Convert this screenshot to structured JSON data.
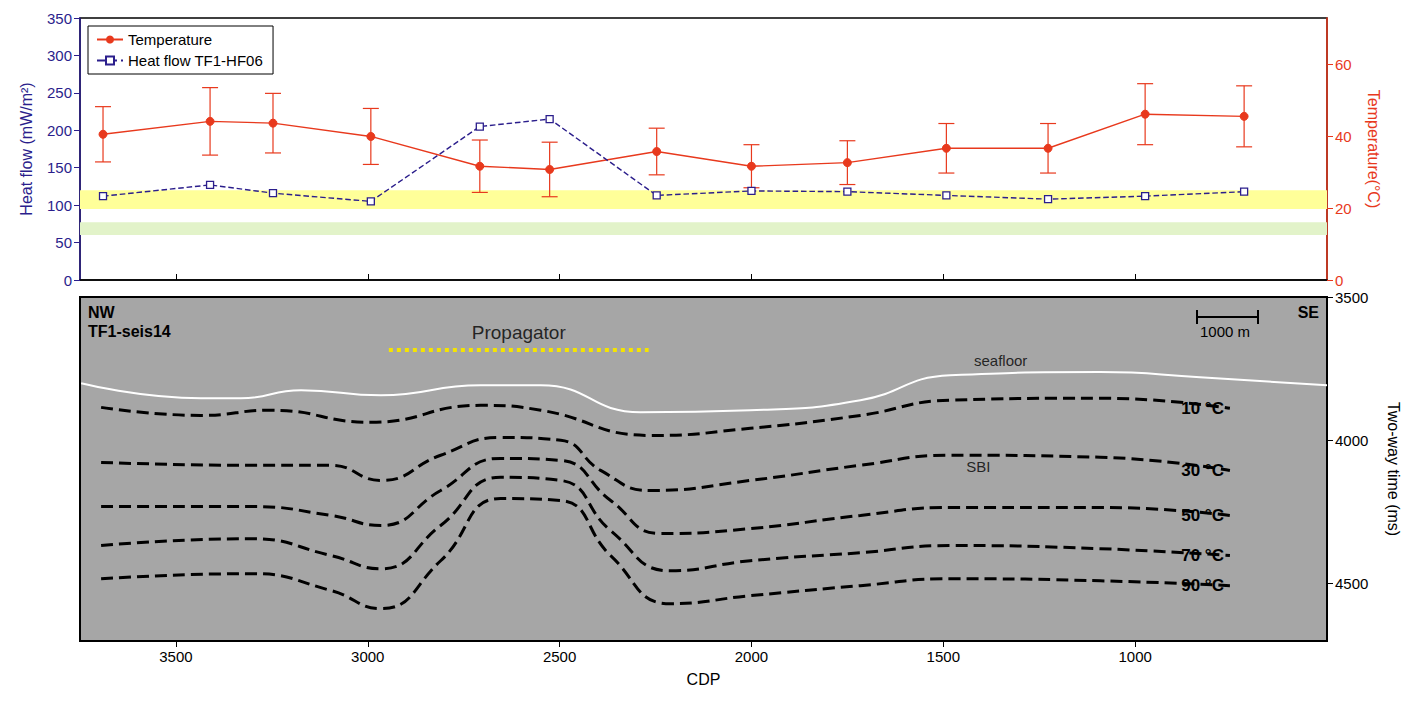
{
  "chart_data": [
    {
      "type": "line",
      "ylabel": "Heat flow (mW/m²)",
      "y2label": "Temperature(°C)",
      "xlim": [
        3750,
        500
      ],
      "xticks": [
        3500,
        3000,
        2500,
        2000,
        1500,
        1000
      ],
      "tick_labels": "y",
      "ylim": [
        0,
        350
      ],
      "yticks": [
        0,
        50,
        100,
        150,
        200,
        250,
        300,
        350
      ],
      "y2lim": [
        0,
        73
      ],
      "y2ticks": [
        0,
        20,
        40,
        60
      ],
      "grid": false,
      "legend": "upper left",
      "x": [
        3690,
        3411,
        3247,
        2992,
        2708,
        2526,
        2247,
        2000,
        1750,
        1492,
        1227,
        974,
        716
      ],
      "series": [
        {
          "name": "Temperature",
          "axis": "y2",
          "color": "#e8391d",
          "marker": "circle",
          "line_style": "solid",
          "values": [
            40.6,
            44.2,
            43.7,
            40.0,
            31.7,
            30.8,
            35.8,
            31.7,
            32.7,
            36.7,
            36.7,
            46.2,
            45.6
          ],
          "errors": [
            7.7,
            9.4,
            8.3,
            7.8,
            7.3,
            7.6,
            6.5,
            6.0,
            6.1,
            6.9,
            6.9,
            8.5,
            8.5
          ]
        },
        {
          "name": "Heat flow TF1-HF06",
          "axis": "y",
          "color": "#2b1e8c",
          "marker": "square",
          "line_style": "dashed",
          "values": [
            112,
            127,
            116,
            105,
            205,
            215,
            113,
            119,
            118,
            113,
            108,
            112,
            118
          ]
        }
      ],
      "bands": [
        {
          "from": 95,
          "to": 120,
          "color": "#ffff99"
        },
        {
          "from": 60,
          "to": 77,
          "color": "#e2f3c9"
        }
      ]
    },
    {
      "type": "line",
      "xlabel": "CDP",
      "ylabel": "Two-way time (ms)",
      "xlim": [
        3750,
        500
      ],
      "xticks": [
        3500,
        3000,
        2500,
        2000,
        1500,
        1000
      ],
      "ylim": [
        4700,
        3500
      ],
      "yticks": [
        3500,
        4000,
        4500
      ],
      "grid": false,
      "direction_labels": {
        "left": "NW",
        "right": "SE"
      },
      "profile": "TF1-seis14",
      "scale_bar": "1000 m",
      "propagator": {
        "label": "Propagator",
        "x": [
          2945,
          2268
        ],
        "y": 3685,
        "color": "#f5e400"
      },
      "annotations": [
        {
          "text": "SBI",
          "x": 1440,
          "y": 4090
        }
      ],
      "series": [
        {
          "name": "seafloor",
          "color": "#ffffff",
          "line_style": "solid",
          "label_at": [
            1420,
            3720
          ],
          "x": [
            3747,
            3435,
            3331,
            3174,
            2966,
            2706,
            2549,
            2289,
            2003,
            1716,
            1482,
            1091,
            831,
            500
          ],
          "values": [
            3801,
            3853,
            3853,
            3825,
            3843,
            3808,
            3808,
            3902,
            3895,
            3860,
            3773,
            3762,
            3780,
            3808
          ]
        },
        {
          "name": "10 °C",
          "color": "#000000",
          "line_style": "dashed",
          "x": [
            3695,
            3435,
            3253,
            2992,
            2706,
            2549,
            2263,
            2003,
            1716,
            1482,
            1091,
            753
          ],
          "values": [
            3885,
            3913,
            3895,
            3937,
            3878,
            3895,
            3983,
            3958,
            3913,
            3860,
            3853,
            3888
          ]
        },
        {
          "name": "30 °C",
          "color": "#000000",
          "line_style": "dashed",
          "x": [
            3695,
            3305,
            3096,
            2966,
            2810,
            2654,
            2497,
            2393,
            2263,
            2003,
            1716,
            1482,
            1091,
            753
          ],
          "values": [
            4077,
            4087,
            4087,
            4140,
            4052,
            3990,
            4000,
            4105,
            4175,
            4140,
            4087,
            4052,
            4059,
            4105
          ]
        },
        {
          "name": "50 °C",
          "color": "#000000",
          "line_style": "dashed",
          "x": [
            3695,
            3305,
            3096,
            2966,
            2810,
            2654,
            2497,
            2367,
            2237,
            2003,
            1716,
            1482,
            1091,
            753
          ],
          "values": [
            4231,
            4231,
            4262,
            4297,
            4175,
            4063,
            4070,
            4210,
            4325,
            4308,
            4262,
            4234,
            4234,
            4262
          ]
        },
        {
          "name": "70 °C",
          "color": "#000000",
          "line_style": "dashed",
          "x": [
            3695,
            3305,
            3096,
            2966,
            2810,
            2654,
            2497,
            2367,
            2211,
            2003,
            1716,
            1482,
            1091,
            753
          ],
          "values": [
            4367,
            4343,
            4402,
            4448,
            4297,
            4129,
            4140,
            4315,
            4455,
            4420,
            4392,
            4367,
            4378,
            4402
          ]
        },
        {
          "name": "90 °C",
          "color": "#000000",
          "line_style": "dashed",
          "x": [
            3695,
            3305,
            3096,
            2966,
            2810,
            2654,
            2497,
            2367,
            2211,
            2003,
            1716,
            1482,
            1091,
            753
          ],
          "values": [
            4483,
            4465,
            4524,
            4587,
            4420,
            4203,
            4210,
            4402,
            4570,
            4542,
            4507,
            4483,
            4490,
            4507
          ]
        }
      ]
    }
  ]
}
